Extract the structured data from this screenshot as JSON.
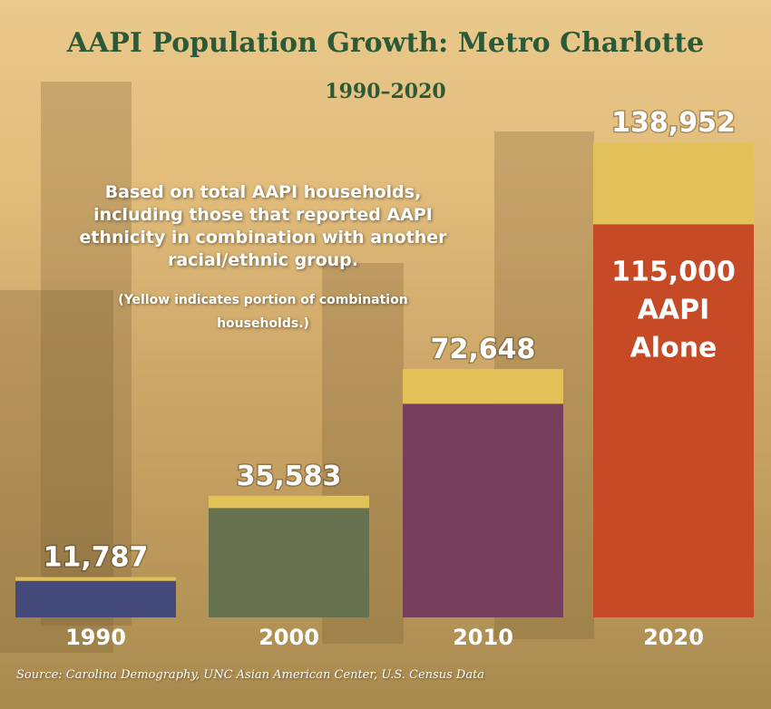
{
  "title": "AAPI Population Growth: Metro Charlotte",
  "subtitle": "1990–2020",
  "note": "Based on total AAPI households, including those that reported AAPI ethnicity in combination with another racial/ethnic group.",
  "note_small": "(Yellow indicates portion of combination households.)",
  "source": "Source: Carolina Demography, UNC Asian American Center, U.S. Census Data",
  "chart_data": {
    "type": "bar",
    "stacked": true,
    "categories": [
      "1990",
      "2000",
      "2010",
      "2020"
    ],
    "totals": [
      11787,
      35583,
      72648,
      138952
    ],
    "total_labels": [
      "11,787",
      "35,583",
      "72,648",
      "138,952"
    ],
    "series": [
      {
        "values": [
          10700,
          32000,
          62500,
          115000
        ],
        "colors": [
          "#444a7a",
          "#65714f",
          "#76405d",
          "#c64a26"
        ]
      },
      {
        "values": [
          1087,
          3583,
          10148,
          23952
        ],
        "color": "#e2c158"
      }
    ],
    "inner_label": {
      "category": "2020",
      "lines": [
        "115,000",
        "AAPI",
        "Alone"
      ]
    },
    "ylim": [
      0,
      138952
    ],
    "grid": false,
    "legend": "none"
  }
}
